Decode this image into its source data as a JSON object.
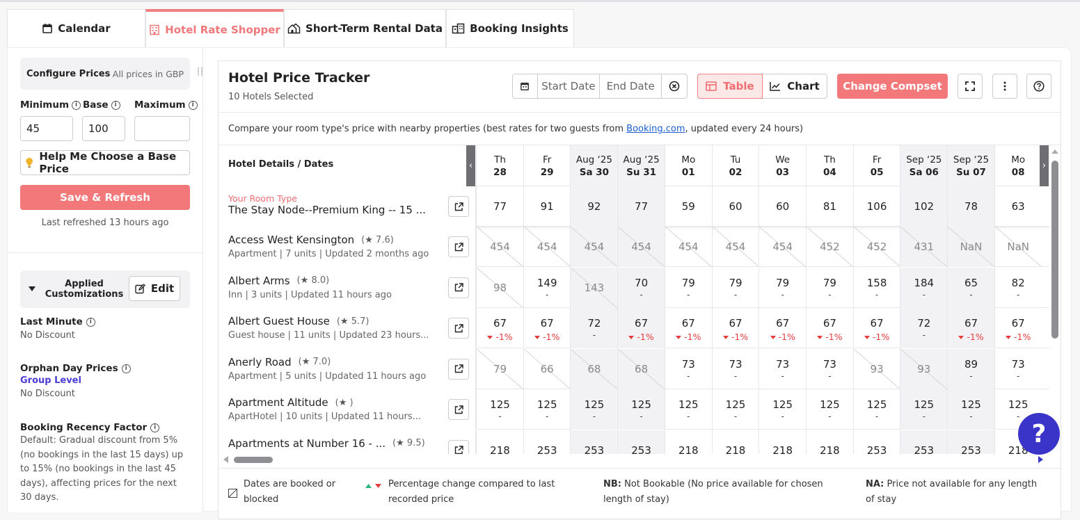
{
  "tabs": [
    {
      "label": "Calendar",
      "icon": "calendar-icon"
    },
    {
      "label": "Hotel Rate Shopper",
      "icon": "hotel-icon",
      "active": true
    },
    {
      "label": "Short-Term Rental Data",
      "icon": "house-icon"
    },
    {
      "label": "Booking Insights",
      "icon": "chart-building-icon"
    }
  ],
  "sidebar": {
    "configure_title": "Configure Prices",
    "currency_note": "All prices in GBP",
    "min_label": "Minimum",
    "base_label": "Base",
    "max_label": "Maximum",
    "min_value": "45",
    "base_value": "100",
    "max_value": "",
    "help_label": "Help Me Choose a Base Price",
    "save_label": "Save & Refresh",
    "last_refreshed": "Last refreshed 13 hours ago",
    "applied_title": "Applied Customizations",
    "edit_label": "Edit",
    "last_minute": {
      "title": "Last Minute",
      "value": "No Discount"
    },
    "orphan": {
      "title": "Orphan Day Prices",
      "group": "Group Level",
      "value": "No Discount"
    },
    "recency": {
      "title": "Booking Recency Factor",
      "value": "Default: Gradual discount from 5% (no bookings in the last 15 days) up to 15% (no bookings in the last 45 days), affecting prices for the next 30 days."
    }
  },
  "panel": {
    "title": "Hotel Price Tracker",
    "subtitle": "10 Hotels Selected",
    "start_placeholder": "Start Date",
    "end_placeholder": "End Date",
    "table_label": "Table",
    "chart_label": "Chart",
    "compset_label": "Change Compset",
    "note_pre": "Compare your room type's price with nearby properties (best rates for two guests from ",
    "note_link": "Booking.com",
    "note_post": ", updated every 24 hours)",
    "header_label": "Hotel Details / Dates"
  },
  "dates": [
    {
      "top": "Th",
      "bottom": "28",
      "weekend": false
    },
    {
      "top": "Fr",
      "bottom": "29",
      "weekend": false
    },
    {
      "top": "Aug ‘25",
      "bottom": "Sa 30",
      "weekend": true
    },
    {
      "top": "Aug ‘25",
      "bottom": "Su 31",
      "weekend": true
    },
    {
      "top": "Mo",
      "bottom": "01",
      "weekend": false
    },
    {
      "top": "Tu",
      "bottom": "02",
      "weekend": false
    },
    {
      "top": "We",
      "bottom": "03",
      "weekend": false
    },
    {
      "top": "Th",
      "bottom": "04",
      "weekend": false
    },
    {
      "top": "Fr",
      "bottom": "05",
      "weekend": false
    },
    {
      "top": "Sep ‘25",
      "bottom": "Sa 06",
      "weekend": true
    },
    {
      "top": "Sep ‘25",
      "bottom": "Su 07",
      "weekend": true
    },
    {
      "top": "Mo",
      "bottom": "08",
      "weekend": false
    }
  ],
  "your_room": {
    "label": "Your Room Type",
    "name": "The Stay Node--Premium King -- 15 ...",
    "prices": [
      "77",
      "91",
      "92",
      "77",
      "59",
      "60",
      "60",
      "81",
      "106",
      "102",
      "78",
      "63"
    ]
  },
  "hotels": [
    {
      "name": "Access West Kensington",
      "rating": "7.6",
      "meta": "Apartment | 7 units | Updated 2 months ago",
      "cells": [
        [
          "454",
          "",
          "b"
        ],
        [
          "454",
          "",
          "b"
        ],
        [
          "454",
          "",
          "b"
        ],
        [
          "454",
          "",
          "b"
        ],
        [
          "454",
          "",
          "b"
        ],
        [
          "454",
          "",
          "b"
        ],
        [
          "454",
          "",
          "b"
        ],
        [
          "452",
          "",
          "b"
        ],
        [
          "452",
          "",
          "b"
        ],
        [
          "431",
          "",
          "b"
        ],
        [
          "NaN",
          "",
          "b"
        ],
        [
          "NaN",
          "",
          "b"
        ]
      ]
    },
    {
      "name": "Albert Arms",
      "rating": "8.0",
      "meta": "Inn | 3 units | Updated 11 hours ago",
      "cells": [
        [
          "98",
          "",
          "b"
        ],
        [
          "149",
          "-",
          ""
        ],
        [
          "143",
          "",
          "b"
        ],
        [
          "70",
          "-",
          ""
        ],
        [
          "79",
          "-",
          ""
        ],
        [
          "79",
          "-",
          ""
        ],
        [
          "79",
          "-",
          ""
        ],
        [
          "79",
          "-",
          ""
        ],
        [
          "158",
          "-",
          ""
        ],
        [
          "184",
          "-",
          ""
        ],
        [
          "65",
          "-",
          ""
        ],
        [
          "82",
          "-",
          ""
        ]
      ]
    },
    {
      "name": "Albert Guest House",
      "rating": "5.7",
      "meta": "Guest house | 11 units | Updated 23 hours...",
      "cells": [
        [
          "67",
          "-1%",
          "c"
        ],
        [
          "67",
          "-1%",
          "c"
        ],
        [
          "72",
          "-",
          ""
        ],
        [
          "67",
          "-1%",
          "c"
        ],
        [
          "67",
          "-1%",
          "c"
        ],
        [
          "67",
          "-1%",
          "c"
        ],
        [
          "67",
          "-1%",
          "c"
        ],
        [
          "67",
          "-1%",
          "c"
        ],
        [
          "67",
          "-1%",
          "c"
        ],
        [
          "72",
          "-",
          ""
        ],
        [
          "67",
          "-1%",
          "c"
        ],
        [
          "67",
          "-1%",
          "c"
        ]
      ]
    },
    {
      "name": "Anerly Road",
      "rating": "7.0",
      "meta": "Apartment | 5 units | Updated 11 hours ago",
      "cells": [
        [
          "79",
          "",
          "b"
        ],
        [
          "66",
          "",
          "b"
        ],
        [
          "68",
          "",
          "b"
        ],
        [
          "68",
          "",
          "b"
        ],
        [
          "73",
          "-",
          ""
        ],
        [
          "73",
          "-",
          ""
        ],
        [
          "73",
          "-",
          ""
        ],
        [
          "73",
          "-",
          ""
        ],
        [
          "93",
          "",
          "b"
        ],
        [
          "93",
          "",
          "b"
        ],
        [
          "89",
          "-",
          ""
        ],
        [
          "73",
          "-",
          ""
        ]
      ]
    },
    {
      "name": "Apartment Altitude",
      "rating": "",
      "meta": "ApartHotel | 10 units | Updated 11 hours...",
      "cells": [
        [
          "125",
          "-",
          ""
        ],
        [
          "125",
          "-",
          ""
        ],
        [
          "125",
          "-",
          ""
        ],
        [
          "125",
          "-",
          ""
        ],
        [
          "125",
          "-",
          ""
        ],
        [
          "125",
          "-",
          ""
        ],
        [
          "125",
          "-",
          ""
        ],
        [
          "125",
          "-",
          ""
        ],
        [
          "125",
          "-",
          ""
        ],
        [
          "125",
          "-",
          ""
        ],
        [
          "125",
          "-",
          ""
        ],
        [
          "125",
          "-",
          ""
        ]
      ]
    },
    {
      "name": "Apartments at Number 16 - ...",
      "rating": "9.5",
      "meta": "",
      "cells": [
        [
          "218",
          "",
          ""
        ],
        [
          "253",
          "",
          ""
        ],
        [
          "253",
          "",
          ""
        ],
        [
          "253",
          "",
          ""
        ],
        [
          "218",
          "",
          ""
        ],
        [
          "218",
          "",
          ""
        ],
        [
          "218",
          "",
          ""
        ],
        [
          "218",
          "",
          ""
        ],
        [
          "253",
          "",
          ""
        ],
        [
          "253",
          "",
          ""
        ],
        [
          "253",
          "",
          ""
        ],
        [
          "218",
          "",
          ""
        ]
      ]
    }
  ],
  "legend": {
    "booked": "Dates are booked or blocked",
    "pct": "Percentage change compared to last recorded price",
    "nb_key": "NB:",
    "nb_text": " Not Bookable (No price available for chosen length of stay)",
    "na_key": "NA:",
    "na_text": " Price not available for any length of stay"
  },
  "colors": {
    "accent": "#f2787a",
    "link": "#1a5fd6",
    "help_fab": "#3a34c8",
    "decrease": "#e63b3b"
  }
}
